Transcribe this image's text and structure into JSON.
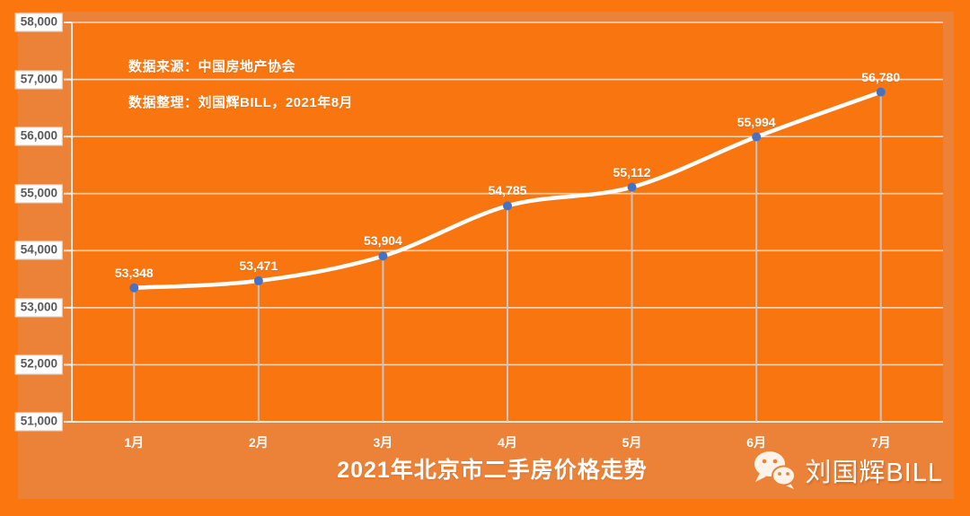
{
  "colors": {
    "page_bg": "#FB760E",
    "panel_bg": "#EC8238",
    "plot_bg": "#F9750F",
    "line": "#FFFFFF",
    "marker": "#4472C4",
    "gridline": "rgba(255,255,255,0.70)",
    "axis_line": "#F2EDE7",
    "drop_line": "#C6C6C6",
    "tick_label_text": "#595959",
    "tick_label_bg": "#FFFFFF",
    "text": "#FFFFFF"
  },
  "annotations": {
    "source_line": "数据来源：中国房地产协会",
    "credit_line": "数据整理：刘国辉BILL，2021年8月"
  },
  "watermark": {
    "icon": "wechat-icon",
    "label": "刘国辉BILL"
  },
  "chart_data": {
    "type": "line",
    "title": "2021年北京市二手房价格走势",
    "categories": [
      "1月",
      "2月",
      "3月",
      "4月",
      "5月",
      "6月",
      "7月"
    ],
    "values": [
      53348,
      53471,
      53904,
      54785,
      55112,
      55994,
      56780
    ],
    "data_labels": [
      "53,348",
      "53,471",
      "53,904",
      "54,785",
      "55,112",
      "55,994",
      "56,780"
    ],
    "ylim": [
      51000,
      58000
    ],
    "ytick_interval": 1000,
    "ytick_labels": [
      "51,000",
      "52,000",
      "53,000",
      "54,000",
      "55,000",
      "56,000",
      "57,000",
      "58,000"
    ],
    "xlabel": "",
    "ylabel": "",
    "grid": true,
    "legend": "none",
    "smooth": true
  }
}
